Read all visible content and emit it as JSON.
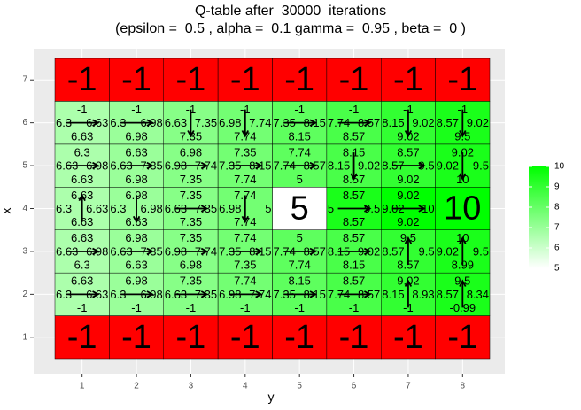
{
  "chart_data": {
    "type": "heatmap",
    "title_line1": "Q-table after  30000  iterations",
    "title_line2": "(epsilon =  0.5 , alpha =  0.1 gamma =  0.95 , beta =  0 )",
    "xlabel": "y",
    "ylabel": "x",
    "x_ticks": [
      "1",
      "2",
      "3",
      "4",
      "5",
      "6",
      "7",
      "8"
    ],
    "y_ticks": [
      "1",
      "2",
      "3",
      "4",
      "5",
      "6",
      "7"
    ],
    "xlim": [
      0.5,
      8.5
    ],
    "ylim": [
      0.5,
      7.5
    ],
    "legend": {
      "position": "right",
      "ticks": [
        "5",
        "6",
        "7",
        "8",
        "9",
        "10"
      ],
      "min": 5,
      "max": 10,
      "low_color": "#ffffff",
      "high_color": "#00ff00"
    },
    "colors": {
      "panel_bg": "#ebebeb",
      "grid": "#ffffff",
      "negative_cell": "#ff0000",
      "cell_border": "#000000"
    },
    "cells": [
      {
        "x": 1,
        "y": 1,
        "center": "-1"
      },
      {
        "x": 1,
        "y": 2,
        "center": "-1"
      },
      {
        "x": 1,
        "y": 3,
        "center": "-1"
      },
      {
        "x": 1,
        "y": 4,
        "center": "-1"
      },
      {
        "x": 1,
        "y": 5,
        "center": "-1"
      },
      {
        "x": 1,
        "y": 6,
        "center": "-1"
      },
      {
        "x": 1,
        "y": 7,
        "center": "-1"
      },
      {
        "x": 1,
        "y": 8,
        "center": "-1"
      },
      {
        "x": 7,
        "y": 1,
        "center": "-1"
      },
      {
        "x": 7,
        "y": 2,
        "center": "-1"
      },
      {
        "x": 7,
        "y": 3,
        "center": "-1"
      },
      {
        "x": 7,
        "y": 4,
        "center": "-1"
      },
      {
        "x": 7,
        "y": 5,
        "center": "-1"
      },
      {
        "x": 7,
        "y": 6,
        "center": "-1"
      },
      {
        "x": 7,
        "y": 7,
        "center": "-1"
      },
      {
        "x": 7,
        "y": 8,
        "center": "-1"
      },
      {
        "x": 4,
        "y": 5,
        "center": "5"
      },
      {
        "x": 4,
        "y": 8,
        "center": "10"
      },
      {
        "x": 2,
        "y": 1,
        "value": 6.63,
        "top": "6.63",
        "bottom": "-1",
        "left": "6.3",
        "right": "6.63",
        "arrow": "right"
      },
      {
        "x": 2,
        "y": 2,
        "value": 6.98,
        "top": "6.98",
        "bottom": "-1",
        "left": "6.3",
        "right": "6.98",
        "arrow": "right"
      },
      {
        "x": 2,
        "y": 3,
        "value": 7.35,
        "top": "7.35",
        "bottom": "-1",
        "left": "6.63",
        "right": "7.35",
        "arrow": "right"
      },
      {
        "x": 2,
        "y": 4,
        "value": 7.74,
        "top": "7.74",
        "bottom": "-1",
        "left": "6.98",
        "right": "7.74",
        "arrow": "right"
      },
      {
        "x": 2,
        "y": 5,
        "value": 8.15,
        "top": "8.15",
        "bottom": "-1",
        "left": "7.35",
        "right": "8.15",
        "arrow": "right"
      },
      {
        "x": 2,
        "y": 6,
        "value": 8.57,
        "top": "8.57",
        "bottom": "-1",
        "left": "7.74",
        "right": "8.57",
        "arrow": "right"
      },
      {
        "x": 2,
        "y": 7,
        "value": 9.02,
        "top": "9.02",
        "bottom": "-1",
        "left": "8.15",
        "right": "8.93",
        "arrow": "up"
      },
      {
        "x": 2,
        "y": 8,
        "value": 9.5,
        "top": "9.5",
        "bottom": "-0.99",
        "left": "8.57",
        "right": "8.34",
        "arrow": "up"
      },
      {
        "x": 3,
        "y": 1,
        "value": 6.63,
        "top": "6.63",
        "bottom": "6.3",
        "left": "6.63",
        "right": "6.98",
        "arrow": "right"
      },
      {
        "x": 3,
        "y": 2,
        "value": 6.98,
        "top": "6.98",
        "bottom": "6.63",
        "left": "6.63",
        "right": "7.35",
        "arrow": "right"
      },
      {
        "x": 3,
        "y": 3,
        "value": 7.35,
        "top": "7.35",
        "bottom": "6.98",
        "left": "6.98",
        "right": "7.74",
        "arrow": "right"
      },
      {
        "x": 3,
        "y": 4,
        "value": 7.74,
        "top": "7.74",
        "bottom": "7.35",
        "left": "7.35",
        "right": "8.15",
        "arrow": "right"
      },
      {
        "x": 3,
        "y": 5,
        "value": 8.15,
        "top": "5",
        "bottom": "7.74",
        "left": "7.74",
        "right": "8.57",
        "arrow": "right"
      },
      {
        "x": 3,
        "y": 6,
        "value": 8.57,
        "top": "8.57",
        "bottom": "8.15",
        "left": "8.15",
        "right": "9.02",
        "arrow": "right"
      },
      {
        "x": 3,
        "y": 7,
        "value": 9.02,
        "top": "9.5",
        "bottom": "8.57",
        "left": "8.57",
        "right": "9.5",
        "arrow": "up"
      },
      {
        "x": 3,
        "y": 8,
        "value": 9.5,
        "top": "10",
        "bottom": "8.99",
        "left": "9.02",
        "right": "9.5",
        "arrow": "up"
      },
      {
        "x": 4,
        "y": 1,
        "value": 6.63,
        "top": "6.63",
        "bottom": "6.63",
        "left": "6.3",
        "right": "6.63",
        "arrow": "up"
      },
      {
        "x": 4,
        "y": 2,
        "value": 6.98,
        "top": "6.98",
        "bottom": "6.63",
        "left": "6.3",
        "right": "6.98",
        "arrow": "down"
      },
      {
        "x": 4,
        "y": 3,
        "value": 7.35,
        "top": "7.35",
        "bottom": "7.35",
        "left": "6.63",
        "right": "7.35",
        "arrow": "right"
      },
      {
        "x": 4,
        "y": 4,
        "value": 7.74,
        "top": "7.74",
        "bottom": "7.74",
        "left": "6.98",
        "right": "5",
        "arrow": "down"
      },
      {
        "x": 4,
        "y": 6,
        "value": 9.5,
        "top": "8.57",
        "bottom": "8.57",
        "left": "5",
        "right": "9.5",
        "arrow": "right"
      },
      {
        "x": 4,
        "y": 7,
        "value": 10,
        "top": "9.02",
        "bottom": "9.02",
        "left": "9.02",
        "right": "10",
        "arrow": "right"
      },
      {
        "x": 5,
        "y": 1,
        "value": 6.63,
        "top": "6.3",
        "bottom": "6.63",
        "left": "6.63",
        "right": "6.98",
        "arrow": "right"
      },
      {
        "x": 5,
        "y": 2,
        "value": 6.98,
        "top": "6.63",
        "bottom": "6.98",
        "left": "6.63",
        "right": "7.35",
        "arrow": "right"
      },
      {
        "x": 5,
        "y": 3,
        "value": 7.35,
        "top": "6.98",
        "bottom": "7.35",
        "left": "6.98",
        "right": "7.74",
        "arrow": "right"
      },
      {
        "x": 5,
        "y": 4,
        "value": 7.74,
        "top": "7.35",
        "bottom": "7.74",
        "left": "7.35",
        "right": "8.15",
        "arrow": "right"
      },
      {
        "x": 5,
        "y": 5,
        "value": 8.15,
        "top": "7.74",
        "bottom": "5",
        "left": "7.74",
        "right": "8.57",
        "arrow": "right"
      },
      {
        "x": 5,
        "y": 6,
        "value": 8.57,
        "top": "8.15",
        "bottom": "8.57",
        "left": "8.15",
        "right": "9.02",
        "arrow": "down"
      },
      {
        "x": 5,
        "y": 7,
        "value": 9.02,
        "top": "8.57",
        "bottom": "9.02",
        "left": "8.57",
        "right": "9.5",
        "arrow": "right"
      },
      {
        "x": 5,
        "y": 8,
        "value": 9.5,
        "top": "9.02",
        "bottom": "10",
        "left": "9.02",
        "right": "9.5",
        "arrow": "down"
      },
      {
        "x": 6,
        "y": 1,
        "value": 6.63,
        "top": "-1",
        "bottom": "6.63",
        "left": "6.3",
        "right": "6.63",
        "arrow": "right"
      },
      {
        "x": 6,
        "y": 2,
        "value": 6.98,
        "top": "-1",
        "bottom": "6.98",
        "left": "6.3",
        "right": "6.98",
        "arrow": "right"
      },
      {
        "x": 6,
        "y": 3,
        "value": 7.35,
        "top": "-1",
        "bottom": "7.35",
        "left": "6.63",
        "right": "7.35",
        "arrow": "down"
      },
      {
        "x": 6,
        "y": 4,
        "value": 7.74,
        "top": "-1",
        "bottom": "7.74",
        "left": "6.98",
        "right": "7.74",
        "arrow": "down"
      },
      {
        "x": 6,
        "y": 5,
        "value": 8.15,
        "top": "-1",
        "bottom": "8.15",
        "left": "7.35",
        "right": "8.15",
        "arrow": "right"
      },
      {
        "x": 6,
        "y": 6,
        "value": 8.57,
        "top": "-1",
        "bottom": "8.57",
        "left": "7.74",
        "right": "8.57",
        "arrow": "right"
      },
      {
        "x": 6,
        "y": 7,
        "value": 9.02,
        "top": "-1",
        "bottom": "9.02",
        "left": "8.15",
        "right": "9.02",
        "arrow": "down"
      },
      {
        "x": 6,
        "y": 8,
        "value": 9.5,
        "top": "-1",
        "bottom": "9.5",
        "left": "8.57",
        "right": "9.02",
        "arrow": "down"
      }
    ]
  }
}
